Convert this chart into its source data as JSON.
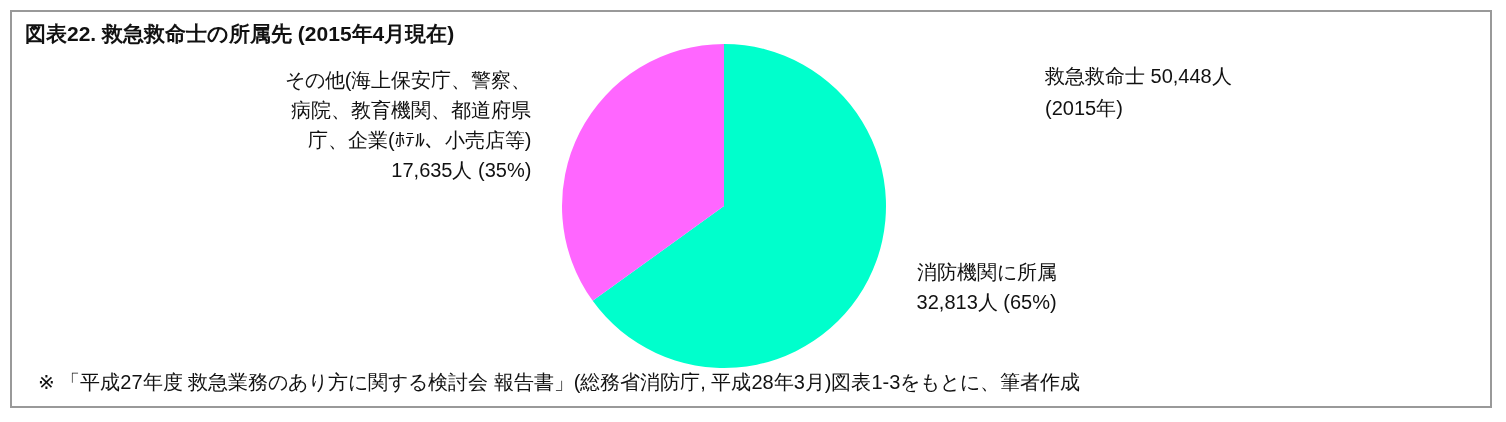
{
  "chart_data": {
    "type": "pie",
    "title": "図表22. 救急救命士の所属先 (2015年4月現在)",
    "categories": [
      "消防機関に所属",
      "その他(海上保安庁、警察、病院、教育機関、都道府県庁、企業(ﾎﾃﾙ、小売店等)"
    ],
    "values": [
      32813,
      17635
    ],
    "value_labels": [
      "32,813人 (65%)",
      "17,635人 (35%)"
    ],
    "colors": [
      "#00ffcc",
      "#ff66ff"
    ],
    "annotations": [
      "救急救命士 50,448人\n(2015年)",
      "※ 「平成27年度 救急業務のあり方に関する検討会 報告書」(総務省消防庁, 平成28年3月)図表1-3をもとに、筆者作成"
    ]
  }
}
